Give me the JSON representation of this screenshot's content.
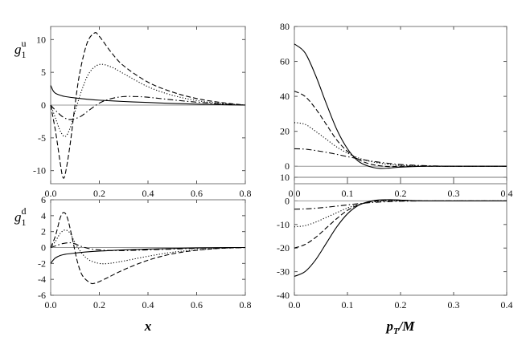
{
  "chart_data": [
    {
      "id": "g1u_x",
      "type": "line",
      "ylabel_main": "g",
      "ylabel_sub": "1",
      "ylabel_sup": "u",
      "xlabel": "",
      "xlim": [
        0,
        0.8
      ],
      "ylim": [
        -12,
        12
      ],
      "xticks": [
        0.0,
        0.2,
        0.4,
        0.6,
        0.8
      ],
      "xtick_labels": [
        "0.0",
        "0.2",
        "0.4",
        "0.6",
        "0.8"
      ],
      "yticks": [
        -10,
        -5,
        0,
        5,
        10
      ],
      "ytick_labels": [
        "-10",
        "-5",
        "0",
        "5",
        "10"
      ],
      "series": [
        {
          "name": "solid",
          "style": "solid",
          "x": [
            0.0,
            0.01,
            0.02,
            0.04,
            0.06,
            0.1,
            0.15,
            0.2,
            0.3,
            0.4,
            0.5,
            0.6,
            0.7,
            0.8
          ],
          "y": [
            3.0,
            2.2,
            1.8,
            1.5,
            1.3,
            1.1,
            0.9,
            0.75,
            0.55,
            0.4,
            0.25,
            0.15,
            0.07,
            0.0
          ]
        },
        {
          "name": "dashed",
          "style": "dashed",
          "x": [
            0.0,
            0.02,
            0.04,
            0.05,
            0.06,
            0.08,
            0.1,
            0.12,
            0.15,
            0.18,
            0.2,
            0.25,
            0.3,
            0.4,
            0.5,
            0.6,
            0.7,
            0.8
          ],
          "y": [
            0.0,
            -4.0,
            -9.0,
            -11.0,
            -10.5,
            -6.0,
            0.0,
            5.0,
            9.5,
            11.0,
            10.5,
            8.0,
            6.0,
            3.5,
            2.0,
            1.0,
            0.4,
            0.0
          ]
        },
        {
          "name": "dotted",
          "style": "dotted",
          "x": [
            0.0,
            0.02,
            0.04,
            0.06,
            0.08,
            0.1,
            0.13,
            0.16,
            0.2,
            0.25,
            0.3,
            0.4,
            0.5,
            0.6,
            0.7,
            0.8
          ],
          "y": [
            0.0,
            -2.0,
            -4.0,
            -4.8,
            -3.5,
            -1.0,
            2.5,
            5.0,
            6.2,
            5.8,
            4.8,
            2.8,
            1.5,
            0.7,
            0.25,
            0.0
          ]
        },
        {
          "name": "dashdot",
          "style": "dashdot",
          "x": [
            0.0,
            0.02,
            0.05,
            0.08,
            0.12,
            0.15,
            0.2,
            0.25,
            0.3,
            0.35,
            0.4,
            0.5,
            0.6,
            0.7,
            0.8
          ],
          "y": [
            0.0,
            -0.8,
            -1.8,
            -2.2,
            -1.8,
            -1.0,
            0.3,
            1.0,
            1.3,
            1.3,
            1.2,
            0.8,
            0.45,
            0.2,
            0.0
          ]
        }
      ]
    },
    {
      "id": "g1u_pt",
      "type": "line",
      "xlabel": "",
      "xlim": [
        0,
        0.4
      ],
      "ylim": [
        -10,
        80
      ],
      "xticks": [
        0.0,
        0.1,
        0.2,
        0.3,
        0.4
      ],
      "xtick_labels": [
        "0.0",
        "0.1",
        "0.2",
        "0.3",
        "0.4"
      ],
      "yticks": [
        0,
        20,
        40,
        60,
        80
      ],
      "ytick_labels": [
        "0",
        "20",
        "40",
        "60",
        "80"
      ],
      "series": [
        {
          "name": "solid",
          "style": "solid",
          "x": [
            0.0,
            0.02,
            0.04,
            0.06,
            0.08,
            0.1,
            0.12,
            0.14,
            0.16,
            0.18,
            0.2,
            0.25,
            0.3,
            0.4
          ],
          "y": [
            70,
            65,
            52,
            36,
            21,
            10,
            3,
            0,
            -1.2,
            -1.0,
            -0.5,
            0,
            0,
            0
          ]
        },
        {
          "name": "dashed",
          "style": "dashed",
          "x": [
            0.0,
            0.02,
            0.04,
            0.06,
            0.08,
            0.1,
            0.12,
            0.14,
            0.16,
            0.18,
            0.2,
            0.25,
            0.3,
            0.4
          ],
          "y": [
            43,
            40,
            33,
            24,
            15,
            8.5,
            4,
            1.5,
            0.3,
            -0.2,
            0,
            0,
            0,
            0
          ]
        },
        {
          "name": "dotted",
          "style": "dotted",
          "x": [
            0.0,
            0.02,
            0.04,
            0.06,
            0.08,
            0.1,
            0.12,
            0.14,
            0.16,
            0.18,
            0.2,
            0.25,
            0.3,
            0.4
          ],
          "y": [
            25,
            24,
            20,
            15.5,
            11,
            7.5,
            4.8,
            3,
            1.8,
            1.0,
            0.5,
            0.1,
            0,
            0
          ]
        },
        {
          "name": "dashdot",
          "style": "dashdot",
          "x": [
            0.0,
            0.02,
            0.04,
            0.06,
            0.08,
            0.1,
            0.12,
            0.14,
            0.16,
            0.18,
            0.2,
            0.25,
            0.3,
            0.4
          ],
          "y": [
            10,
            9.8,
            9,
            8,
            6.8,
            5.5,
            4.3,
            3.2,
            2.3,
            1.6,
            1.0,
            0.3,
            0.05,
            0
          ]
        }
      ]
    },
    {
      "id": "g1d_x",
      "type": "line",
      "ylabel_main": "g",
      "ylabel_sub": "1",
      "ylabel_sup": "d",
      "xlabel": "x",
      "xlim": [
        0,
        0.8
      ],
      "ylim": [
        -6,
        6
      ],
      "xticks": [
        0.0,
        0.2,
        0.4,
        0.6,
        0.8
      ],
      "xtick_labels": [
        "0.0",
        "0.2",
        "0.4",
        "0.6",
        "0.8"
      ],
      "yticks": [
        -6,
        -4,
        -2,
        0,
        2,
        4,
        6
      ],
      "ytick_labels": [
        "-6",
        "-4",
        "-2",
        "0",
        "2",
        "4",
        "6"
      ],
      "series": [
        {
          "name": "solid",
          "style": "solid",
          "x": [
            0.0,
            0.01,
            0.02,
            0.04,
            0.06,
            0.1,
            0.15,
            0.2,
            0.3,
            0.4,
            0.5,
            0.6,
            0.7,
            0.8
          ],
          "y": [
            -2.0,
            -1.6,
            -1.3,
            -1.0,
            -0.85,
            -0.7,
            -0.55,
            -0.45,
            -0.3,
            -0.2,
            -0.12,
            -0.06,
            -0.02,
            0.0
          ]
        },
        {
          "name": "dashed",
          "style": "dashed",
          "x": [
            0.0,
            0.02,
            0.04,
            0.055,
            0.07,
            0.09,
            0.11,
            0.13,
            0.16,
            0.18,
            0.22,
            0.3,
            0.4,
            0.5,
            0.6,
            0.7,
            0.8
          ],
          "y": [
            0.0,
            1.5,
            3.8,
            4.4,
            3.6,
            1.0,
            -1.8,
            -3.5,
            -4.4,
            -4.5,
            -4.0,
            -2.8,
            -1.6,
            -0.8,
            -0.35,
            -0.1,
            0.0
          ]
        },
        {
          "name": "dotted",
          "style": "dotted",
          "x": [
            0.0,
            0.02,
            0.04,
            0.06,
            0.08,
            0.1,
            0.13,
            0.16,
            0.2,
            0.24,
            0.3,
            0.4,
            0.5,
            0.6,
            0.7,
            0.8
          ],
          "y": [
            0.0,
            0.8,
            1.8,
            2.2,
            1.8,
            0.6,
            -0.8,
            -1.6,
            -2.0,
            -2.0,
            -1.7,
            -1.1,
            -0.6,
            -0.3,
            -0.1,
            0.0
          ]
        },
        {
          "name": "dashdot",
          "style": "dashdot",
          "x": [
            0.0,
            0.02,
            0.05,
            0.08,
            0.1,
            0.13,
            0.16,
            0.2,
            0.25,
            0.3,
            0.35,
            0.4,
            0.5,
            0.6,
            0.7,
            0.8
          ],
          "y": [
            0.0,
            0.2,
            0.5,
            0.6,
            0.45,
            0.1,
            -0.15,
            -0.3,
            -0.38,
            -0.38,
            -0.35,
            -0.3,
            -0.2,
            -0.1,
            -0.04,
            0.0
          ]
        }
      ]
    },
    {
      "id": "g1d_pt",
      "type": "line",
      "xlabel_main": "p",
      "xlabel_sub": "T",
      "xlabel_rest": "/M",
      "xlim": [
        0,
        0.4
      ],
      "ylim": [
        -40,
        10
      ],
      "xticks": [
        0.0,
        0.1,
        0.2,
        0.3,
        0.4
      ],
      "xtick_labels": [
        "0.0",
        "0.1",
        "0.2",
        "0.3",
        "0.4"
      ],
      "yticks": [
        -40,
        -30,
        -20,
        -10,
        0,
        10
      ],
      "ytick_labels": [
        "-40",
        "-30",
        "-20",
        "-10",
        "0",
        "10"
      ],
      "series": [
        {
          "name": "solid",
          "style": "solid",
          "x": [
            0.0,
            0.02,
            0.04,
            0.06,
            0.08,
            0.1,
            0.12,
            0.14,
            0.16,
            0.18,
            0.2,
            0.22,
            0.25,
            0.3,
            0.4
          ],
          "y": [
            -32,
            -30,
            -25,
            -18,
            -11,
            -5.5,
            -2.0,
            -0.3,
            0.4,
            0.5,
            0.35,
            0.15,
            0,
            0,
            0
          ]
        },
        {
          "name": "dashed",
          "style": "dashed",
          "x": [
            0.0,
            0.02,
            0.04,
            0.06,
            0.08,
            0.1,
            0.12,
            0.14,
            0.16,
            0.18,
            0.2,
            0.22,
            0.25,
            0.3,
            0.4
          ],
          "y": [
            -20,
            -18.5,
            -15.5,
            -11.5,
            -7.5,
            -4.0,
            -1.8,
            -0.5,
            0.1,
            0.3,
            0.25,
            0.1,
            0,
            0,
            0
          ]
        },
        {
          "name": "dotted",
          "style": "dotted",
          "x": [
            0.0,
            0.02,
            0.04,
            0.06,
            0.08,
            0.1,
            0.12,
            0.14,
            0.16,
            0.18,
            0.2,
            0.22,
            0.25,
            0.3,
            0.4
          ],
          "y": [
            -11,
            -10.5,
            -9,
            -7,
            -5,
            -3.0,
            -1.6,
            -0.7,
            -0.2,
            0.0,
            0.1,
            0.05,
            0,
            0,
            0
          ]
        },
        {
          "name": "dashdot",
          "style": "dashdot",
          "x": [
            0.0,
            0.02,
            0.04,
            0.06,
            0.08,
            0.1,
            0.12,
            0.14,
            0.16,
            0.18,
            0.2,
            0.25,
            0.3,
            0.4
          ],
          "y": [
            -3.5,
            -3.4,
            -3.1,
            -2.7,
            -2.2,
            -1.7,
            -1.2,
            -0.8,
            -0.5,
            -0.3,
            -0.15,
            0,
            0,
            0
          ]
        }
      ]
    }
  ]
}
